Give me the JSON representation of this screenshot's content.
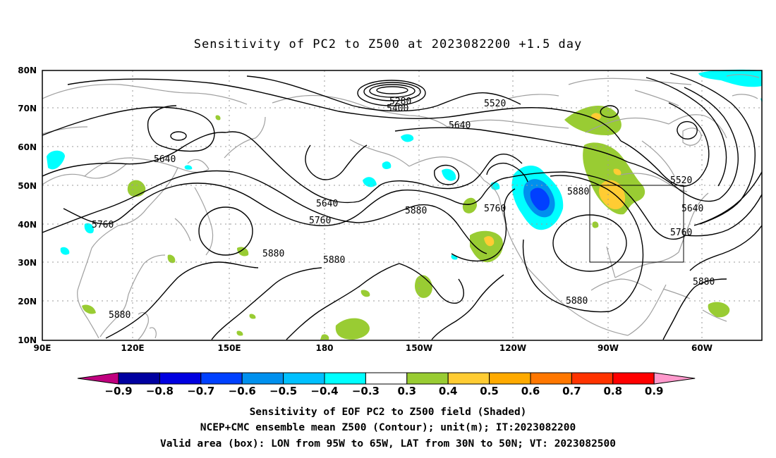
{
  "title": "Sensitivity of PC2 to Z500 at 2023082200 +1.5 day",
  "lat_labels": [
    "10N",
    "20N",
    "30N",
    "40N",
    "50N",
    "60N",
    "70N",
    "80N"
  ],
  "lon_labels": [
    "90E",
    "120E",
    "150E",
    "180",
    "150W",
    "120W",
    "90W",
    "60W"
  ],
  "contour_labels": [
    {
      "text": "5280"
    },
    {
      "text": "5400"
    },
    {
      "text": "5520"
    },
    {
      "text": "5640"
    },
    {
      "text": "5640"
    },
    {
      "text": "5640"
    },
    {
      "text": "5760"
    },
    {
      "text": "5760"
    },
    {
      "text": "5880"
    },
    {
      "text": "5880"
    },
    {
      "text": "5880"
    },
    {
      "text": "5760"
    },
    {
      "text": "5880"
    },
    {
      "text": "5880"
    },
    {
      "text": "5520"
    },
    {
      "text": "5640"
    },
    {
      "text": "5760"
    },
    {
      "text": "5880"
    },
    {
      "text": "5880"
    }
  ],
  "colorbar": {
    "colors": [
      "#c0007f",
      "#0000a0",
      "#0000e0",
      "#0040ff",
      "#0090ee",
      "#00c0ff",
      "#00ffff",
      "#ffffff",
      "#99cc33",
      "#ffcc33",
      "#ffaa00",
      "#ff7700",
      "#ff3300",
      "#ff0000",
      "#ff99cc"
    ],
    "labels": [
      "−0.9",
      "−0.8",
      "−0.7",
      "−0.6",
      "−0.5",
      "−0.4",
      "−0.3",
      "0.3",
      "0.4",
      "0.5",
      "0.6",
      "0.7",
      "0.8",
      "0.9"
    ]
  },
  "footer": {
    "line1": "Sensitivity of EOF PC2 to Z500 field (Shaded)",
    "line2": "NCEP+CMC ensemble mean Z500 (Contour); unit(m); IT:2023082200",
    "line3": "Valid area (box): LON from 95W to 65W, LAT from 30N to 50N; VT: 2023082500"
  }
}
